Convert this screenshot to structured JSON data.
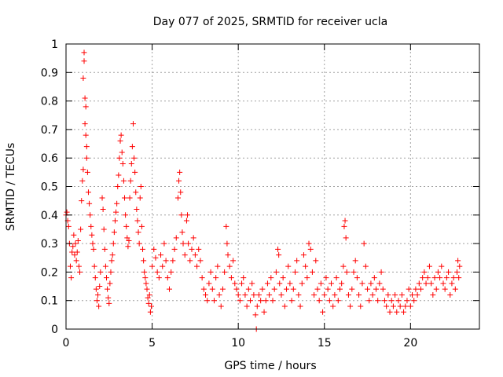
{
  "chart_data": {
    "type": "scatter",
    "title": "Day 077 of 2025, SRMTID for receiver ucla",
    "xlabel": "GPS time / hours",
    "ylabel": "SRMTID / TECUs",
    "xlim": [
      0,
      24
    ],
    "ylim": [
      0,
      1
    ],
    "xticks": [
      0,
      5,
      10,
      15,
      20
    ],
    "yticks": [
      0,
      0.1,
      0.2,
      0.3,
      0.4,
      0.5,
      0.6,
      0.7,
      0.8,
      0.9,
      1
    ],
    "grid": true,
    "marker": "+",
    "color": "#ff0000",
    "series": [
      {
        "name": "SRMTID",
        "points": [
          [
            0.0,
            0.4
          ],
          [
            0.05,
            0.41
          ],
          [
            0.1,
            0.38
          ],
          [
            0.15,
            0.36
          ],
          [
            0.2,
            0.3
          ],
          [
            0.25,
            0.22
          ],
          [
            0.3,
            0.18
          ],
          [
            0.35,
            0.27
          ],
          [
            0.4,
            0.29
          ],
          [
            0.45,
            0.33
          ],
          [
            0.5,
            0.26
          ],
          [
            0.55,
            0.3
          ],
          [
            0.6,
            0.24
          ],
          [
            0.65,
            0.27
          ],
          [
            0.7,
            0.31
          ],
          [
            0.75,
            0.22
          ],
          [
            0.8,
            0.2
          ],
          [
            0.85,
            0.35
          ],
          [
            0.9,
            0.45
          ],
          [
            0.95,
            0.52
          ],
          [
            1.0,
            0.56
          ],
          [
            1.0,
            0.88
          ],
          [
            1.05,
            0.94
          ],
          [
            1.05,
            0.97
          ],
          [
            1.1,
            0.81
          ],
          [
            1.1,
            0.72
          ],
          [
            1.15,
            0.68
          ],
          [
            1.15,
            0.78
          ],
          [
            1.2,
            0.64
          ],
          [
            1.2,
            0.6
          ],
          [
            1.25,
            0.55
          ],
          [
            1.3,
            0.48
          ],
          [
            1.35,
            0.44
          ],
          [
            1.4,
            0.4
          ],
          [
            1.45,
            0.36
          ],
          [
            1.5,
            0.33
          ],
          [
            1.55,
            0.3
          ],
          [
            1.6,
            0.28
          ],
          [
            1.65,
            0.22
          ],
          [
            1.7,
            0.18
          ],
          [
            1.75,
            0.14
          ],
          [
            1.8,
            0.1
          ],
          [
            1.85,
            0.12
          ],
          [
            1.9,
            0.08
          ],
          [
            1.95,
            0.15
          ],
          [
            2.0,
            0.2
          ],
          [
            2.1,
            0.46
          ],
          [
            2.15,
            0.42
          ],
          [
            2.2,
            0.35
          ],
          [
            2.25,
            0.28
          ],
          [
            2.3,
            0.22
          ],
          [
            2.35,
            0.18
          ],
          [
            2.4,
            0.14
          ],
          [
            2.45,
            0.11
          ],
          [
            2.5,
            0.09
          ],
          [
            2.55,
            0.16
          ],
          [
            2.6,
            0.2
          ],
          [
            2.65,
            0.24
          ],
          [
            2.7,
            0.26
          ],
          [
            2.75,
            0.3
          ],
          [
            2.8,
            0.34
          ],
          [
            2.85,
            0.38
          ],
          [
            2.9,
            0.41
          ],
          [
            2.95,
            0.44
          ],
          [
            3.0,
            0.5
          ],
          [
            3.05,
            0.54
          ],
          [
            3.1,
            0.6
          ],
          [
            3.15,
            0.66
          ],
          [
            3.2,
            0.68
          ],
          [
            3.25,
            0.62
          ],
          [
            3.3,
            0.58
          ],
          [
            3.35,
            0.52
          ],
          [
            3.4,
            0.46
          ],
          [
            3.45,
            0.4
          ],
          [
            3.5,
            0.36
          ],
          [
            3.55,
            0.32
          ],
          [
            3.6,
            0.29
          ],
          [
            3.65,
            0.31
          ],
          [
            3.7,
            0.46
          ],
          [
            3.75,
            0.52
          ],
          [
            3.8,
            0.58
          ],
          [
            3.85,
            0.64
          ],
          [
            3.9,
            0.72
          ],
          [
            3.95,
            0.6
          ],
          [
            4.0,
            0.55
          ],
          [
            4.05,
            0.48
          ],
          [
            4.1,
            0.42
          ],
          [
            4.15,
            0.38
          ],
          [
            4.2,
            0.34
          ],
          [
            4.25,
            0.3
          ],
          [
            4.3,
            0.46
          ],
          [
            4.35,
            0.5
          ],
          [
            4.4,
            0.36
          ],
          [
            4.45,
            0.28
          ],
          [
            4.5,
            0.24
          ],
          [
            4.55,
            0.2
          ],
          [
            4.6,
            0.18
          ],
          [
            4.65,
            0.16
          ],
          [
            4.7,
            0.14
          ],
          [
            4.75,
            0.11
          ],
          [
            4.8,
            0.09
          ],
          [
            4.85,
            0.12
          ],
          [
            4.9,
            0.06
          ],
          [
            4.95,
            0.08
          ],
          [
            5.0,
            0.22
          ],
          [
            5.1,
            0.28
          ],
          [
            5.2,
            0.25
          ],
          [
            5.3,
            0.2
          ],
          [
            5.4,
            0.18
          ],
          [
            5.5,
            0.26
          ],
          [
            5.6,
            0.22
          ],
          [
            5.7,
            0.3
          ],
          [
            5.8,
            0.24
          ],
          [
            5.9,
            0.18
          ],
          [
            6.0,
            0.14
          ],
          [
            6.1,
            0.2
          ],
          [
            6.2,
            0.24
          ],
          [
            6.3,
            0.28
          ],
          [
            6.4,
            0.32
          ],
          [
            6.5,
            0.46
          ],
          [
            6.55,
            0.52
          ],
          [
            6.6,
            0.55
          ],
          [
            6.65,
            0.48
          ],
          [
            6.7,
            0.4
          ],
          [
            6.75,
            0.34
          ],
          [
            6.8,
            0.3
          ],
          [
            6.9,
            0.26
          ],
          [
            7.0,
            0.38
          ],
          [
            7.05,
            0.4
          ],
          [
            7.1,
            0.3
          ],
          [
            7.2,
            0.24
          ],
          [
            7.3,
            0.28
          ],
          [
            7.4,
            0.32
          ],
          [
            7.5,
            0.26
          ],
          [
            7.6,
            0.22
          ],
          [
            7.7,
            0.28
          ],
          [
            7.8,
            0.24
          ],
          [
            7.9,
            0.18
          ],
          [
            8.0,
            0.14
          ],
          [
            8.1,
            0.12
          ],
          [
            8.2,
            0.1
          ],
          [
            8.3,
            0.16
          ],
          [
            8.4,
            0.2
          ],
          [
            8.5,
            0.14
          ],
          [
            8.6,
            0.1
          ],
          [
            8.7,
            0.18
          ],
          [
            8.8,
            0.22
          ],
          [
            8.9,
            0.12
          ],
          [
            9.0,
            0.08
          ],
          [
            9.1,
            0.14
          ],
          [
            9.2,
            0.2
          ],
          [
            9.3,
            0.36
          ],
          [
            9.35,
            0.3
          ],
          [
            9.4,
            0.26
          ],
          [
            9.5,
            0.22
          ],
          [
            9.6,
            0.18
          ],
          [
            9.7,
            0.24
          ],
          [
            9.8,
            0.16
          ],
          [
            9.9,
            0.14
          ],
          [
            10.0,
            0.12
          ],
          [
            10.1,
            0.1
          ],
          [
            10.2,
            0.16
          ],
          [
            10.3,
            0.18
          ],
          [
            10.4,
            0.12
          ],
          [
            10.5,
            0.08
          ],
          [
            10.6,
            0.14
          ],
          [
            10.7,
            0.1
          ],
          [
            10.8,
            0.16
          ],
          [
            10.9,
            0.12
          ],
          [
            11.0,
            0.05
          ],
          [
            11.05,
            0.0
          ],
          [
            11.1,
            0.08
          ],
          [
            11.2,
            0.12
          ],
          [
            11.3,
            0.1
          ],
          [
            11.4,
            0.14
          ],
          [
            11.5,
            0.06
          ],
          [
            11.6,
            0.1
          ],
          [
            11.7,
            0.16
          ],
          [
            11.8,
            0.12
          ],
          [
            11.9,
            0.18
          ],
          [
            12.0,
            0.1
          ],
          [
            12.1,
            0.14
          ],
          [
            12.2,
            0.2
          ],
          [
            12.3,
            0.28
          ],
          [
            12.35,
            0.26
          ],
          [
            12.4,
            0.16
          ],
          [
            12.5,
            0.12
          ],
          [
            12.6,
            0.18
          ],
          [
            12.7,
            0.08
          ],
          [
            12.8,
            0.14
          ],
          [
            12.9,
            0.22
          ],
          [
            13.0,
            0.16
          ],
          [
            13.1,
            0.1
          ],
          [
            13.2,
            0.14
          ],
          [
            13.3,
            0.2
          ],
          [
            13.4,
            0.24
          ],
          [
            13.5,
            0.12
          ],
          [
            13.6,
            0.08
          ],
          [
            13.7,
            0.16
          ],
          [
            13.8,
            0.26
          ],
          [
            13.9,
            0.22
          ],
          [
            14.0,
            0.18
          ],
          [
            14.1,
            0.3
          ],
          [
            14.2,
            0.28
          ],
          [
            14.3,
            0.2
          ],
          [
            14.4,
            0.12
          ],
          [
            14.5,
            0.24
          ],
          [
            14.6,
            0.14
          ],
          [
            14.7,
            0.1
          ],
          [
            14.8,
            0.16
          ],
          [
            14.9,
            0.06
          ],
          [
            15.0,
            0.12
          ],
          [
            15.1,
            0.18
          ],
          [
            15.2,
            0.14
          ],
          [
            15.3,
            0.1
          ],
          [
            15.4,
            0.16
          ],
          [
            15.5,
            0.08
          ],
          [
            15.6,
            0.12
          ],
          [
            15.7,
            0.18
          ],
          [
            15.8,
            0.1
          ],
          [
            15.9,
            0.14
          ],
          [
            16.0,
            0.16
          ],
          [
            16.1,
            0.22
          ],
          [
            16.15,
            0.36
          ],
          [
            16.2,
            0.38
          ],
          [
            16.25,
            0.32
          ],
          [
            16.3,
            0.2
          ],
          [
            16.4,
            0.12
          ],
          [
            16.5,
            0.08
          ],
          [
            16.6,
            0.14
          ],
          [
            16.7,
            0.2
          ],
          [
            16.8,
            0.24
          ],
          [
            16.9,
            0.18
          ],
          [
            17.0,
            0.12
          ],
          [
            17.1,
            0.08
          ],
          [
            17.2,
            0.16
          ],
          [
            17.3,
            0.3
          ],
          [
            17.4,
            0.22
          ],
          [
            17.5,
            0.14
          ],
          [
            17.6,
            0.1
          ],
          [
            17.7,
            0.16
          ],
          [
            17.8,
            0.12
          ],
          [
            17.9,
            0.18
          ],
          [
            18.0,
            0.14
          ],
          [
            18.1,
            0.1
          ],
          [
            18.2,
            0.16
          ],
          [
            18.3,
            0.2
          ],
          [
            18.4,
            0.14
          ],
          [
            18.5,
            0.1
          ],
          [
            18.6,
            0.08
          ],
          [
            18.7,
            0.12
          ],
          [
            18.8,
            0.06
          ],
          [
            18.9,
            0.1
          ],
          [
            19.0,
            0.08
          ],
          [
            19.1,
            0.12
          ],
          [
            19.2,
            0.06
          ],
          [
            19.3,
            0.1
          ],
          [
            19.4,
            0.08
          ],
          [
            19.5,
            0.12
          ],
          [
            19.6,
            0.06
          ],
          [
            19.7,
            0.08
          ],
          [
            19.8,
            0.1
          ],
          [
            19.9,
            0.14
          ],
          [
            20.0,
            0.08
          ],
          [
            20.1,
            0.12
          ],
          [
            20.2,
            0.1
          ],
          [
            20.3,
            0.14
          ],
          [
            20.4,
            0.12
          ],
          [
            20.5,
            0.16
          ],
          [
            20.6,
            0.14
          ],
          [
            20.7,
            0.18
          ],
          [
            20.8,
            0.2
          ],
          [
            20.9,
            0.16
          ],
          [
            21.0,
            0.18
          ],
          [
            21.1,
            0.22
          ],
          [
            21.2,
            0.16
          ],
          [
            21.3,
            0.12
          ],
          [
            21.4,
            0.18
          ],
          [
            21.5,
            0.14
          ],
          [
            21.6,
            0.2
          ],
          [
            21.7,
            0.18
          ],
          [
            21.8,
            0.22
          ],
          [
            21.9,
            0.16
          ],
          [
            22.0,
            0.14
          ],
          [
            22.1,
            0.18
          ],
          [
            22.2,
            0.2
          ],
          [
            22.3,
            0.12
          ],
          [
            22.4,
            0.16
          ],
          [
            22.5,
            0.18
          ],
          [
            22.6,
            0.14
          ],
          [
            22.7,
            0.2
          ],
          [
            22.75,
            0.24
          ],
          [
            22.8,
            0.18
          ],
          [
            22.85,
            0.22
          ]
        ]
      }
    ]
  }
}
